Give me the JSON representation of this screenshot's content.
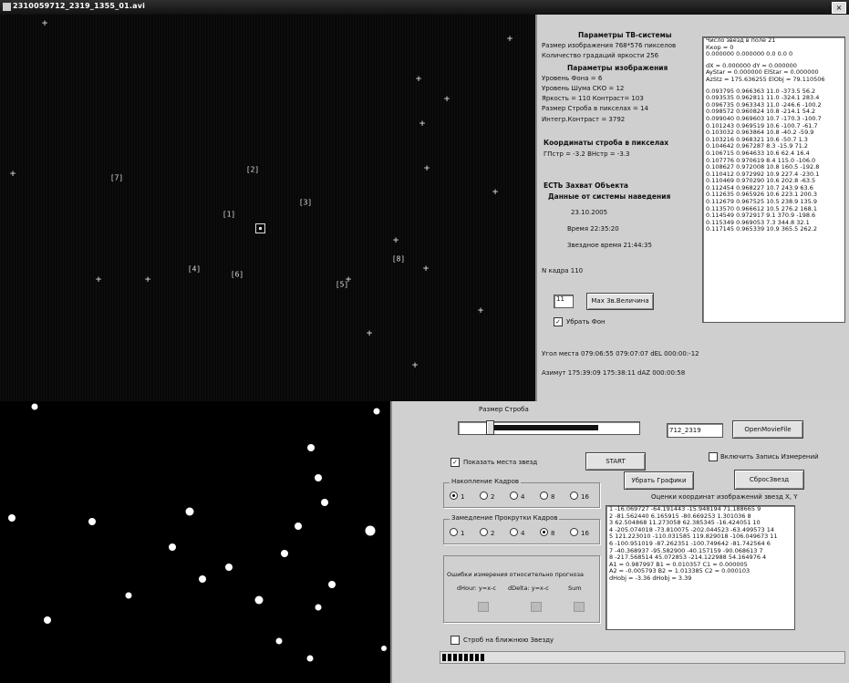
{
  "window": {
    "title": "2310059712_2319_1355_01.avi",
    "close_glyph": "×",
    "app_icon": "app-icon",
    "close_icon": "close-icon"
  },
  "star_markers": [
    {
      "label": "[7]"
    },
    {
      "label": "[2]"
    },
    {
      "label": "[3]"
    },
    {
      "label": "[1]"
    },
    {
      "label": "[4]"
    },
    {
      "label": "[6]"
    },
    {
      "label": "[5]"
    },
    {
      "label": "[8]"
    }
  ],
  "info": {
    "tv_header": "Параметры ТВ-системы",
    "image_size": "Размер изображения 768*576 пикселов",
    "gradations": "Количество градаций яркости 256",
    "img_header": "Параметры изображения",
    "bg_level": "Уровень Фона = 6",
    "noise_level": "Уровень Шума СКО = 12",
    "brightness": "Яркость = 110  Контраст= 103",
    "strobe_size": "Размер Строба в пикселах = 14",
    "integ_contrast": "Интегр.Контраст = 3792",
    "coords_header": "Координаты строба в пикселах",
    "coords": "ГПстр = -3.2   ВНстр = -3.3",
    "capture_header": "ЕСТЬ Захват Объекта",
    "nav_header": "Данные от системы наведения",
    "date": "23.10.2005",
    "time": "Время 22:35:20",
    "sidereal": "Звездное время 21:44:35",
    "frame": "N кадра  110",
    "mag_field": "11",
    "mag_button": "Мах Зв.Величина",
    "remove_bg": "Убрать Фон",
    "altitude": "Угол места 079:06:55  079:07:07  dEL  000:00:-12",
    "azimuth": "Азимут 175:39:09  175:38:11  dAZ  000:00:58"
  },
  "stats_lines": [
    "Число звезд в поле 21",
    "Ккор = 0",
    "0.000000  0.000000  0.0  0.0  0",
    "",
    "dX = 0.000000    dY = 0.000000",
    "AyStar = 0.000000   ElStar = 0.000000",
    "AzStz = 175.636255   ElObj = 79.110506",
    "",
    "0.093795  0.966363  11.0   -373.5  56.2",
    "0.093535  0.962811  11.0   -324.1  283.4",
    "0.096735  0.963343  11.0   -246.6  -100.2",
    "0.098572  0.960824  10.8   -214.1  54.2",
    "0.099040  0.969603  10.7   -170.3  -100.7",
    "0.101243  0.969519  10.6   -100.7  -61.7",
    "0.103032  0.963864  10.8   -40.2  -59.9",
    "0.103216  0.968321  10.6   -50.7  1.3",
    "0.104642  0.967287  8.3   -15.9  71.2",
    "0.106715  0.964633  10.6   62.4  16.4",
    "0.107776  0.970619  8.4   115.0  -106.0",
    "0.108627  0.972008  10.8   160.5  -192.8",
    "0.110412  0.972992  10.9   227.4  -230.1",
    "0.110469  0.970290  10.6   202.8  -63.5",
    "0.112454  0.968227  10.7   243.9  63.6",
    "0.112635  0.965926  10.6   223.1  200.3",
    "0.112679  0.967525  10.5   238.9  135.9",
    "0.113570  0.966612  10.5   276.2  168.1",
    "0.114549  0.972917  9.1   370.9  -198.6",
    "0.115349  0.969053  7.3   344.8  32.1",
    "0.117145  0.965339  10.9   365.5  262.2"
  ],
  "controls": {
    "strobe_label": "Размер Строба",
    "strobe_fill_fraction": 0.78,
    "file_field": "712_2319",
    "open_button": "OpenMovieFile",
    "show_stars": "Показать места звезд",
    "start_button": "START",
    "record_label": "Включить Запись Измерений",
    "clear_graphs": "Убрать Графики",
    "reset_stars": "СбросЗвезд",
    "accum_group": "Накопление Кадров",
    "accum_options": [
      "1",
      "2",
      "4",
      "8",
      "16"
    ],
    "accum_selected": 0,
    "slow_group": "Замедление Прокрутки Кадров",
    "slow_options": [
      "1",
      "2",
      "4",
      "8",
      "16"
    ],
    "slow_selected": 3,
    "errors_group": "Ошибки измерения относительно прогноза",
    "errors_cols": [
      "dHour: y=x-c",
      "dDelta: y=x-c",
      "Sum"
    ],
    "strobe_bright": "Строб на ближнюю Звезду",
    "estimate_title": "Оценки координат изображений звезд X, Y",
    "progress_fraction": 0.11
  },
  "estimate_lines": [
    "1   -16.069727  -64.191443   -15.948194  71.188665  9",
    "2   -81.562440   6.165915   -80.669253  1.301036  8",
    "3   62.504868  11.273058   62.385345  -16.424051  10",
    "4   -205.074018  -73.810075  -202.044523  -63.499573  14",
    "5   121.223010  -110.031585  119.829018  -106.049673  11",
    "6   -100.951019  -87.262351  -100.749642  -81.742564  6",
    "7   -40.368937  -95.582900  -40.157159  -90.068613  7",
    "8   -217.568514  45.072853  -214.122988  54.164976  4",
    "A1 = 0.987997  B1 = 0.010357  C1 = 0.000005",
    "A2 = -0.005793  B2 = 1.013385  C2 = 0.000103",
    "dHobj = -3.36     dHobj = 3.39"
  ]
}
